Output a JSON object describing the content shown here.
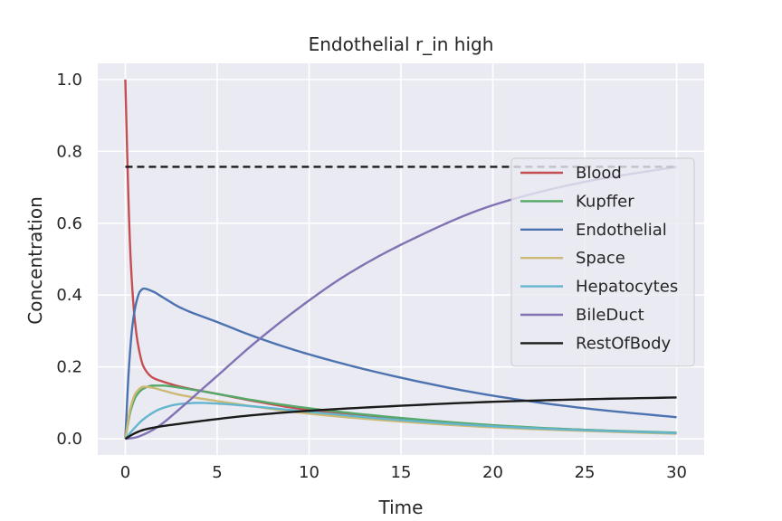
{
  "chart_data": {
    "type": "line",
    "title": "Endothelial r_in high",
    "xlabel": "Time",
    "ylabel": "Concentration",
    "xlim": [
      -1.5,
      31.5
    ],
    "ylim": [
      -0.045,
      1.045
    ],
    "xticks": [
      0,
      5,
      10,
      15,
      20,
      25,
      30
    ],
    "yticks": [
      0.0,
      0.2,
      0.4,
      0.6,
      0.8,
      1.0
    ],
    "xtick_labels": [
      "0",
      "5",
      "10",
      "15",
      "20",
      "25",
      "30"
    ],
    "ytick_labels": [
      "0.0",
      "0.2",
      "0.4",
      "0.6",
      "0.8",
      "1.0"
    ],
    "grid": true,
    "legend_position": "right",
    "reference_line": {
      "y": 0.757,
      "x": [
        0,
        30
      ],
      "style": "dashed",
      "color": "#1a1a1a"
    },
    "series": [
      {
        "name": "Blood",
        "color": "#c44e52",
        "x": [
          0,
          0.1,
          0.2,
          0.3,
          0.5,
          0.7,
          1,
          1.5,
          2,
          3,
          5,
          7,
          10,
          15,
          20,
          25,
          30
        ],
        "y": [
          1.0,
          0.8,
          0.62,
          0.49,
          0.34,
          0.26,
          0.2,
          0.17,
          0.16,
          0.145,
          0.125,
          0.105,
          0.08,
          0.055,
          0.035,
          0.025,
          0.015
        ]
      },
      {
        "name": "Kupffer",
        "color": "#55a868",
        "x": [
          0,
          0.3,
          0.6,
          1,
          1.5,
          2,
          3,
          5,
          7,
          10,
          15,
          20,
          25,
          30
        ],
        "y": [
          0.0,
          0.08,
          0.12,
          0.14,
          0.148,
          0.148,
          0.142,
          0.125,
          0.107,
          0.085,
          0.058,
          0.038,
          0.025,
          0.017
        ]
      },
      {
        "name": "Endothelial",
        "color": "#4c72b0",
        "x": [
          0,
          0.2,
          0.4,
          0.6,
          0.8,
          1,
          1.5,
          2,
          3,
          5,
          7,
          10,
          15,
          20,
          25,
          30
        ],
        "y": [
          0.0,
          0.2,
          0.32,
          0.38,
          0.41,
          0.418,
          0.41,
          0.395,
          0.365,
          0.325,
          0.285,
          0.235,
          0.17,
          0.12,
          0.085,
          0.06
        ]
      },
      {
        "name": "Space",
        "color": "#ccb974",
        "x": [
          0,
          0.3,
          0.6,
          1,
          1.5,
          2,
          3,
          5,
          7,
          10,
          15,
          20,
          25,
          30
        ],
        "y": [
          0.0,
          0.09,
          0.13,
          0.145,
          0.142,
          0.135,
          0.122,
          0.105,
          0.09,
          0.07,
          0.048,
          0.032,
          0.022,
          0.014
        ]
      },
      {
        "name": "Hepatocytes",
        "color": "#64b5cd",
        "x": [
          0,
          0.5,
          1,
          2,
          3,
          4,
          5,
          7,
          10,
          15,
          20,
          25,
          30
        ],
        "y": [
          0.0,
          0.03,
          0.055,
          0.085,
          0.097,
          0.1,
          0.098,
          0.09,
          0.075,
          0.052,
          0.035,
          0.024,
          0.016
        ]
      },
      {
        "name": "BileDuct",
        "color": "#8172b3",
        "x": [
          0,
          0.5,
          1,
          1.5,
          2,
          3,
          4,
          5,
          7,
          10,
          12,
          15,
          20,
          25,
          30
        ],
        "y": [
          0.0,
          0.003,
          0.012,
          0.025,
          0.042,
          0.085,
          0.13,
          0.175,
          0.265,
          0.385,
          0.455,
          0.54,
          0.65,
          0.715,
          0.757
        ]
      },
      {
        "name": "RestOfBody",
        "color": "#1a1a1a",
        "x": [
          0,
          0.5,
          1,
          2,
          3,
          5,
          7,
          10,
          15,
          20,
          25,
          30
        ],
        "y": [
          0.0,
          0.015,
          0.025,
          0.035,
          0.042,
          0.055,
          0.066,
          0.078,
          0.092,
          0.103,
          0.11,
          0.115
        ]
      }
    ]
  }
}
